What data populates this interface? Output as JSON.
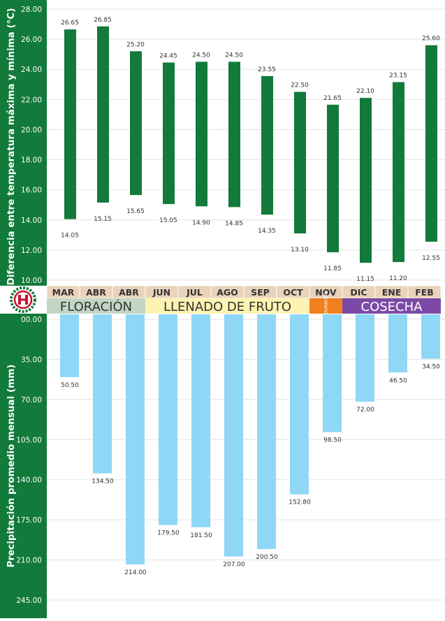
{
  "chart_data": [
    {
      "type": "range-bar",
      "ylabel": "Diferencia entre temperatura máxima y mínima (°C)",
      "ylim": [
        10,
        28
      ],
      "ytick_labels": [
        "10.00",
        "12.00",
        "14.00",
        "16.00",
        "18.00",
        "20.00",
        "22.00",
        "24.00",
        "26.00",
        "28.00"
      ],
      "max_labels": [
        "26.65",
        "26.85",
        "25.20",
        "24.45",
        "24.50",
        "24.50",
        "23.55",
        "22.50",
        "21.65",
        "22.10",
        "23.15",
        "25.60"
      ],
      "min_labels": [
        "14.05",
        "15.15",
        "15.65",
        "15.05",
        "14.90",
        "14.85",
        "14.35",
        "13.10",
        "11.85",
        "11.15",
        "11.20",
        "12.55"
      ],
      "max": [
        26.65,
        26.85,
        25.2,
        24.45,
        24.5,
        24.5,
        23.55,
        22.5,
        21.65,
        22.1,
        23.15,
        25.6
      ],
      "min": [
        14.05,
        15.15,
        15.65,
        15.05,
        14.9,
        14.85,
        14.35,
        13.1,
        11.85,
        11.15,
        11.2,
        12.55
      ],
      "color": "#127a3a"
    },
    {
      "type": "bar",
      "ylabel": "Precipitación promedio mensual (mm)",
      "ylim": [
        0,
        245
      ],
      "inverted": true,
      "ytick_labels": [
        "00.00",
        "35.00",
        "70.00",
        "105.00",
        "140.00",
        "175.00",
        "210.00",
        "245.00"
      ],
      "value_labels": [
        "50.50",
        "134.50",
        "214.00",
        "179.50",
        "181.50",
        "207.00",
        "200.50",
        "152.80",
        "98.50",
        "72.00",
        "46.50",
        "34.50"
      ],
      "values": [
        50.5,
        134.5,
        214,
        179.5,
        181.5,
        207,
        200.5,
        152.8,
        98.5,
        72,
        46.5,
        34.5
      ],
      "color": "#8fd7f7"
    }
  ],
  "months": [
    "MAR",
    "ABR",
    "ABR",
    "JUN",
    "JUL",
    "AGO",
    "SEP",
    "OCT",
    "NOV",
    "DIC",
    "ENE",
    "FEB"
  ],
  "phases": [
    {
      "label": "FLORACIÓN",
      "color": "#c3d6c6"
    },
    {
      "label": "LLENADO DE FRUTO",
      "color": "#fdf3b2"
    },
    {
      "label": "MADURACIÓN",
      "color": "#f2801f"
    },
    {
      "label": "COSECHA",
      "color": "#7c4aa6"
    }
  ],
  "colors": {
    "side_band": "#127a3a",
    "month_row": "#ead3bb",
    "logo_red": "#c8102e",
    "logo_green": "#127a3a"
  }
}
